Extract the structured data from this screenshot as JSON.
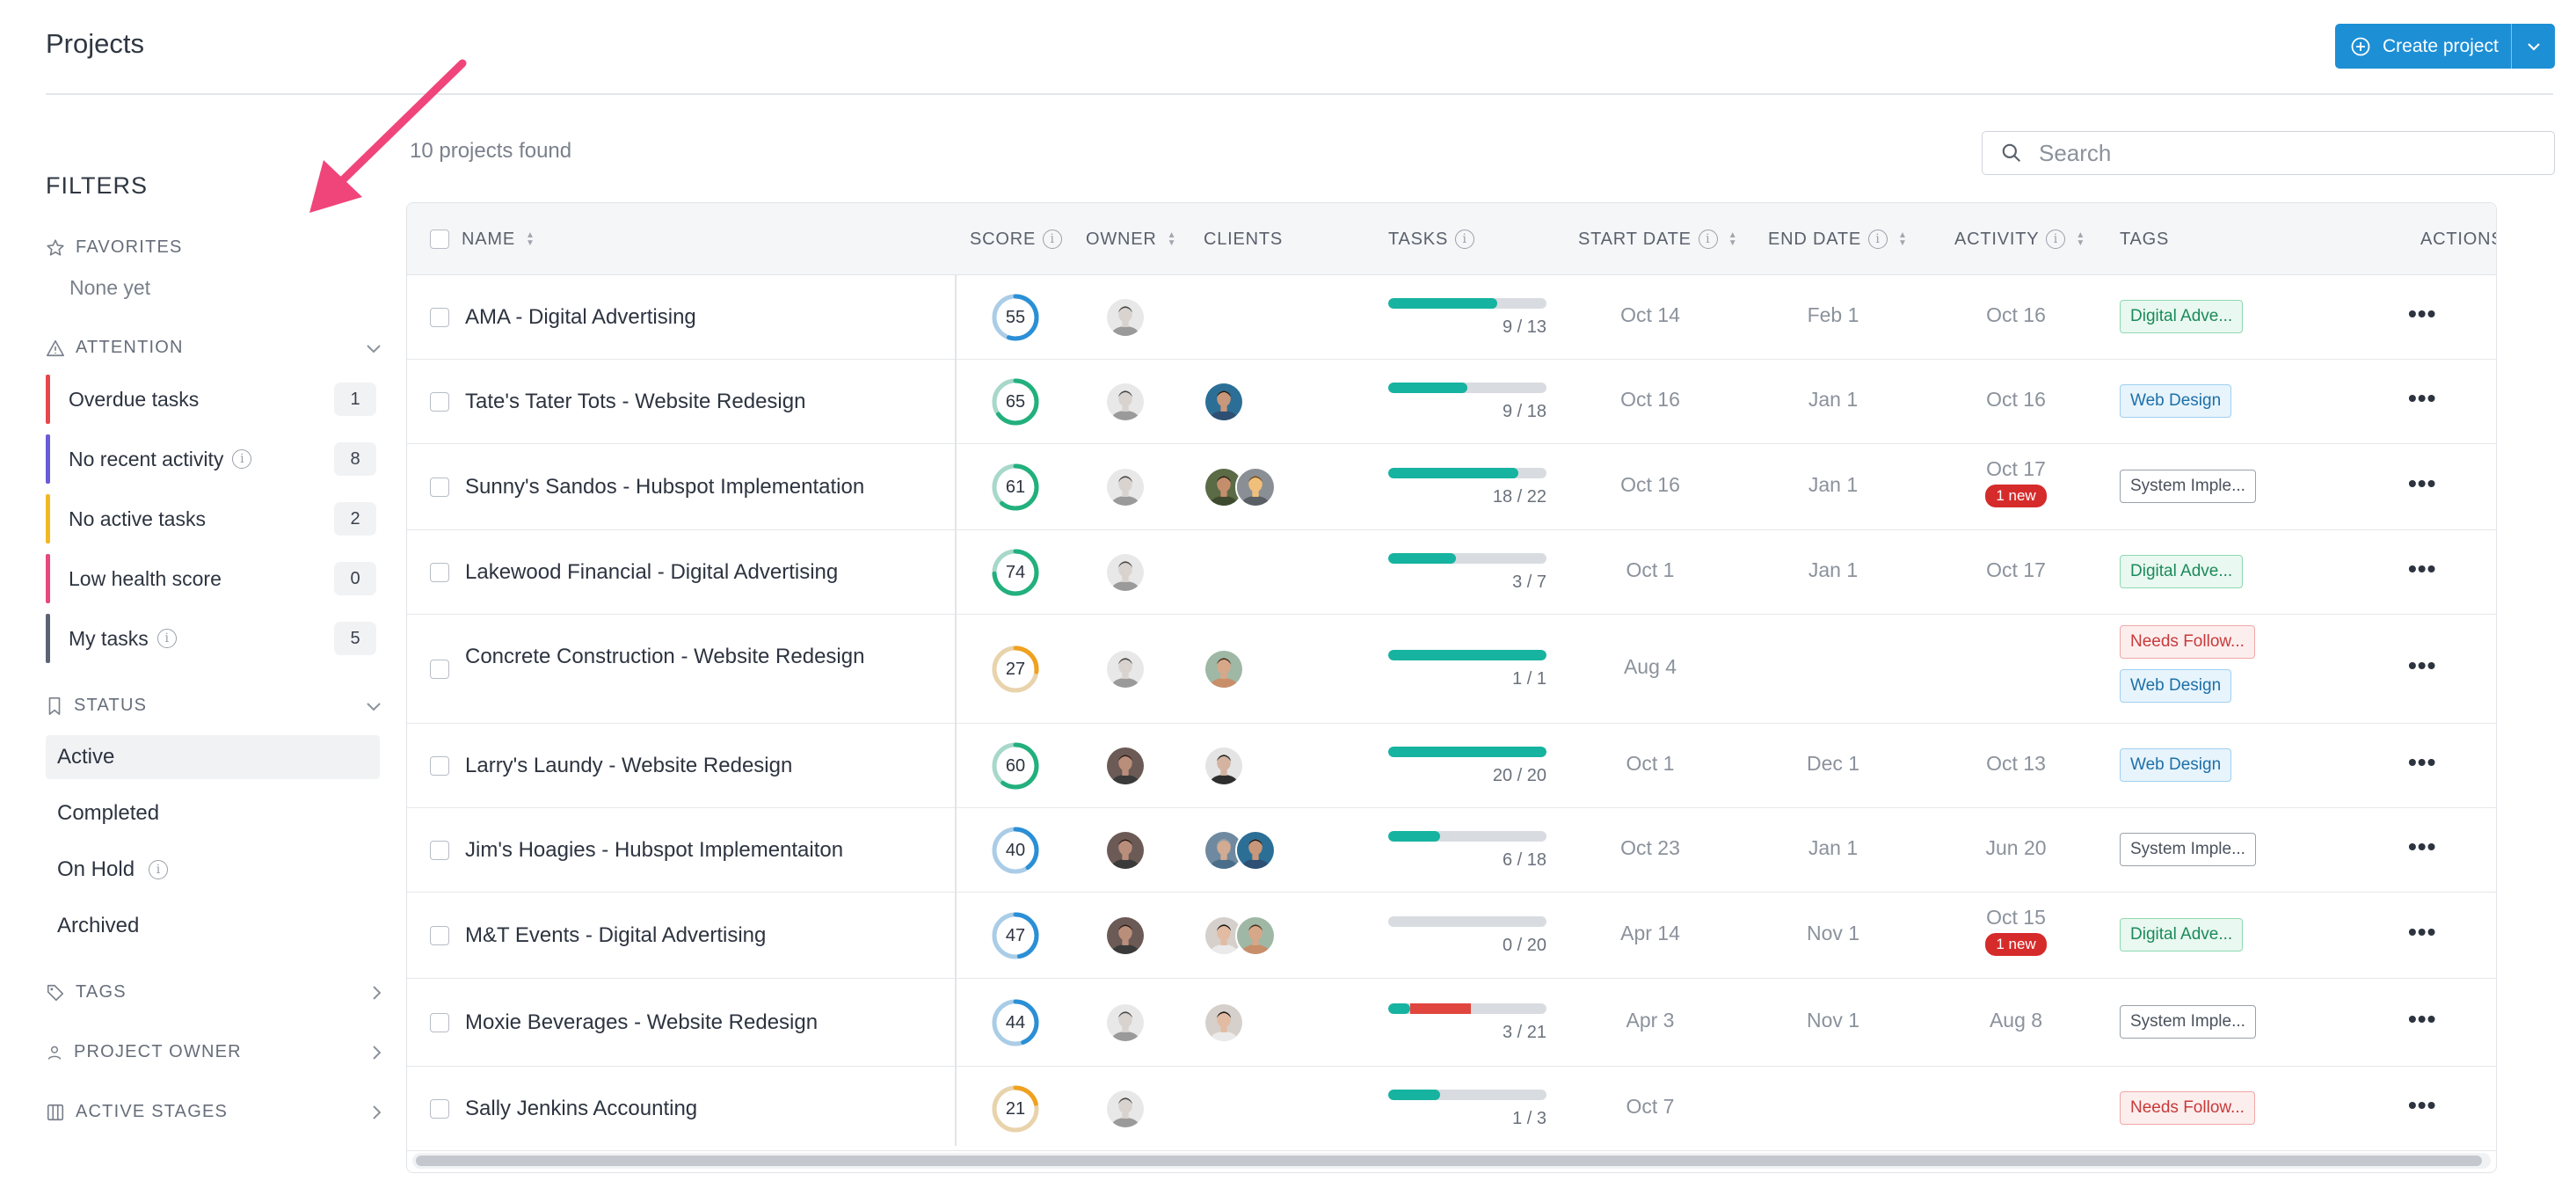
{
  "page": {
    "title": "Projects"
  },
  "header": {
    "create_label": "Create project"
  },
  "filters": {
    "heading": "FILTERS",
    "favorites": {
      "label": "FAVORITES",
      "empty": "None yet"
    },
    "attention": {
      "label": "ATTENTION",
      "items": [
        {
          "label": "Overdue tasks",
          "count": "1",
          "color": "#e5484d",
          "info": false
        },
        {
          "label": "No recent activity",
          "count": "8",
          "color": "#6a5cd8",
          "info": true
        },
        {
          "label": "No active tasks",
          "count": "2",
          "color": "#f2b824",
          "info": false
        },
        {
          "label": "Low health score",
          "count": "0",
          "color": "#e6487f",
          "info": false
        },
        {
          "label": "My tasks",
          "count": "5",
          "color": "#5b6473",
          "info": true
        }
      ]
    },
    "status": {
      "label": "STATUS",
      "items": [
        {
          "label": "Active",
          "selected": true,
          "info": false
        },
        {
          "label": "Completed",
          "selected": false,
          "info": false
        },
        {
          "label": "On Hold",
          "selected": false,
          "info": true
        },
        {
          "label": "Archived",
          "selected": false,
          "info": false
        }
      ]
    },
    "tags": {
      "label": "TAGS"
    },
    "project_owner": {
      "label": "PROJECT OWNER"
    },
    "active_stages": {
      "label": "ACTIVE STAGES"
    }
  },
  "main": {
    "projects_found": "10 projects found",
    "search": {
      "placeholder": "Search"
    },
    "columns": {
      "name": "NAME",
      "score": "SCORE",
      "owner": "OWNER",
      "clients": "CLIENTS",
      "tasks": "TASKS",
      "start": "START DATE",
      "end": "END DATE",
      "activity": "ACTIVITY",
      "tags": "TAGS",
      "actions": "ACTIONS"
    },
    "rows": [
      {
        "name": "AMA - Digital Advertising",
        "score": "55",
        "score_pct": 0.55,
        "score_color": "#2b8fd6",
        "owner": "m1",
        "clients": [],
        "tasks": "9 / 13",
        "done": 0.69,
        "overdue": 0,
        "start": "Oct 14",
        "end": "Feb 1",
        "activity": "Oct 16",
        "new": "",
        "tags": [
          {
            "label": "Digital Adve...",
            "style": "green"
          }
        ],
        "actions": "•••"
      },
      {
        "name": "Tate's Tater Tots - Website Redesign",
        "score": "65",
        "score_pct": 0.65,
        "score_color": "#22b07d",
        "owner": "m1",
        "clients": [
          "c1"
        ],
        "tasks": "9 / 18",
        "done": 0.5,
        "overdue": 0,
        "start": "Oct 16",
        "end": "Jan 1",
        "activity": "Oct 16",
        "new": "",
        "tags": [
          {
            "label": "Web Design",
            "style": "blue"
          }
        ],
        "actions": "•••"
      },
      {
        "name": "Sunny's Sandos - Hubspot Implementation",
        "score": "61",
        "score_pct": 0.61,
        "score_color": "#22b07d",
        "owner": "m1",
        "clients": [
          "c2",
          "c3"
        ],
        "tasks": "18 / 22",
        "done": 0.82,
        "overdue": 0,
        "start": "Oct 16",
        "end": "Jan 1",
        "activity": "Oct 17",
        "new": "1 new",
        "tags": [
          {
            "label": "System Imple...",
            "style": "gray"
          }
        ],
        "actions": "•••"
      },
      {
        "name": "Lakewood Financial - Digital Advertising",
        "score": "74",
        "score_pct": 0.74,
        "score_color": "#22b07d",
        "owner": "m1",
        "clients": [],
        "tasks": "3 / 7",
        "done": 0.43,
        "overdue": 0,
        "start": "Oct 1",
        "end": "Jan 1",
        "activity": "Oct 17",
        "new": "",
        "tags": [
          {
            "label": "Digital Adve...",
            "style": "green"
          }
        ],
        "actions": "•••"
      },
      {
        "name": "Concrete Construction - Website Redesign",
        "score": "27",
        "score_pct": 0.27,
        "score_color": "#f0a11f",
        "owner": "m1",
        "clients": [
          "c4"
        ],
        "tasks": "1 / 1",
        "done": 1.0,
        "overdue": 0,
        "start": "Aug 4",
        "end": "",
        "activity": "",
        "new": "",
        "tags": [
          {
            "label": "Needs Follow...",
            "style": "red"
          },
          {
            "label": "Web Design",
            "style": "blue"
          }
        ],
        "actions": "•••"
      },
      {
        "name": "Larry's Laundy - Website Redesign",
        "score": "60",
        "score_pct": 0.6,
        "score_color": "#22b07d",
        "owner": "w1",
        "clients": [
          "c5"
        ],
        "tasks": "20 / 20",
        "done": 1.0,
        "overdue": 0,
        "start": "Oct 1",
        "end": "Dec 1",
        "activity": "Oct 13",
        "new": "",
        "tags": [
          {
            "label": "Web Design",
            "style": "blue"
          }
        ],
        "actions": "•••"
      },
      {
        "name": "Jim's Hoagies - Hubspot Implementaiton",
        "score": "40",
        "score_pct": 0.4,
        "score_color": "#2b8fd6",
        "owner": "w1",
        "clients": [
          "c6",
          "c1"
        ],
        "tasks": "6 / 18",
        "done": 0.33,
        "overdue": 0,
        "start": "Oct 23",
        "end": "Jan 1",
        "activity": "Jun 20",
        "new": "",
        "tags": [
          {
            "label": "System Imple...",
            "style": "gray"
          }
        ],
        "actions": "•••"
      },
      {
        "name": "M&T Events - Digital Advertising",
        "score": "47",
        "score_pct": 0.47,
        "score_color": "#2b8fd6",
        "owner": "w1",
        "clients": [
          "w2",
          "c4"
        ],
        "tasks": "0 / 20",
        "done": 0.0,
        "overdue": 0,
        "start": "Apr 14",
        "end": "Nov 1",
        "activity": "Oct 15",
        "new": "1 new",
        "tags": [
          {
            "label": "Digital Adve...",
            "style": "green"
          }
        ],
        "actions": "•••"
      },
      {
        "name": "Moxie Beverages - Website Redesign",
        "score": "44",
        "score_pct": 0.44,
        "score_color": "#2b8fd6",
        "owner": "m1",
        "clients": [
          "w2"
        ],
        "tasks": "3 / 21",
        "done": 0.14,
        "overdue": 0.38,
        "start": "Apr 3",
        "end": "Nov 1",
        "activity": "Aug 8",
        "new": "",
        "tags": [
          {
            "label": "System Imple...",
            "style": "gray"
          }
        ],
        "actions": "•••"
      },
      {
        "name": "Sally Jenkins Accounting",
        "score": "21",
        "score_pct": 0.21,
        "score_color": "#f0a11f",
        "owner": "m1",
        "clients": [],
        "tasks": "1 / 3",
        "done": 0.33,
        "overdue": 0,
        "start": "Oct 7",
        "end": "",
        "activity": "",
        "new": "",
        "tags": [
          {
            "label": "Needs Follow...",
            "style": "red"
          }
        ],
        "actions": "•••"
      }
    ]
  },
  "colors": {
    "accent": "#1d8fd5",
    "arrow": "#f0457a",
    "progress": "#16b3a0",
    "overdue": "#e0453e"
  }
}
